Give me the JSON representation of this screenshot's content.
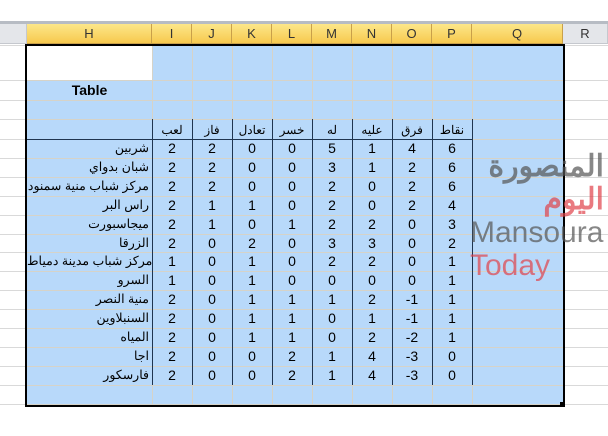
{
  "columns": [
    "H",
    "I",
    "J",
    "K",
    "L",
    "M",
    "N",
    "O",
    "P",
    "Q",
    "R"
  ],
  "table_title": "Table",
  "headers": [
    "لعب",
    "فاز",
    "تعادل",
    "خسر",
    "له",
    "عليه",
    "فرق",
    "نقاط"
  ],
  "rows": [
    [
      "شربين",
      2,
      2,
      0,
      0,
      5,
      1,
      4,
      6
    ],
    [
      "شبان بدواي",
      2,
      2,
      0,
      0,
      3,
      1,
      2,
      6
    ],
    [
      "مركز شباب منية سمنود",
      2,
      2,
      0,
      0,
      2,
      0,
      2,
      6
    ],
    [
      "راس البر",
      2,
      1,
      1,
      0,
      2,
      0,
      2,
      4
    ],
    [
      "ميجاسبورت",
      2,
      1,
      0,
      1,
      2,
      2,
      0,
      3
    ],
    [
      "الزرقا",
      2,
      0,
      2,
      0,
      3,
      3,
      0,
      2
    ],
    [
      "مركز شباب مدينة دمياط",
      1,
      0,
      1,
      0,
      2,
      2,
      0,
      1
    ],
    [
      "السرو",
      1,
      0,
      1,
      0,
      0,
      0,
      0,
      1
    ],
    [
      "منية النصر",
      2,
      0,
      1,
      1,
      1,
      2,
      -1,
      1
    ],
    [
      "السنبلاوين",
      2,
      0,
      1,
      1,
      0,
      1,
      -1,
      1
    ],
    [
      "المياه",
      2,
      0,
      1,
      1,
      0,
      2,
      -2,
      1
    ],
    [
      "اجا",
      2,
      0,
      0,
      2,
      1,
      4,
      -3,
      0
    ],
    [
      "فارسكور",
      2,
      0,
      0,
      2,
      1,
      4,
      -3,
      0
    ]
  ],
  "watermark": {
    "arabic_part1": "المنصورة",
    "arabic_part2": "اليوم",
    "latin_part1": "Mansoura",
    "latin_part2": "Today"
  },
  "colors": {
    "fill": "#b8d9fa",
    "header_gold": "#f7c94e",
    "watermark_gray": "#555",
    "watermark_red": "#e0434b"
  }
}
